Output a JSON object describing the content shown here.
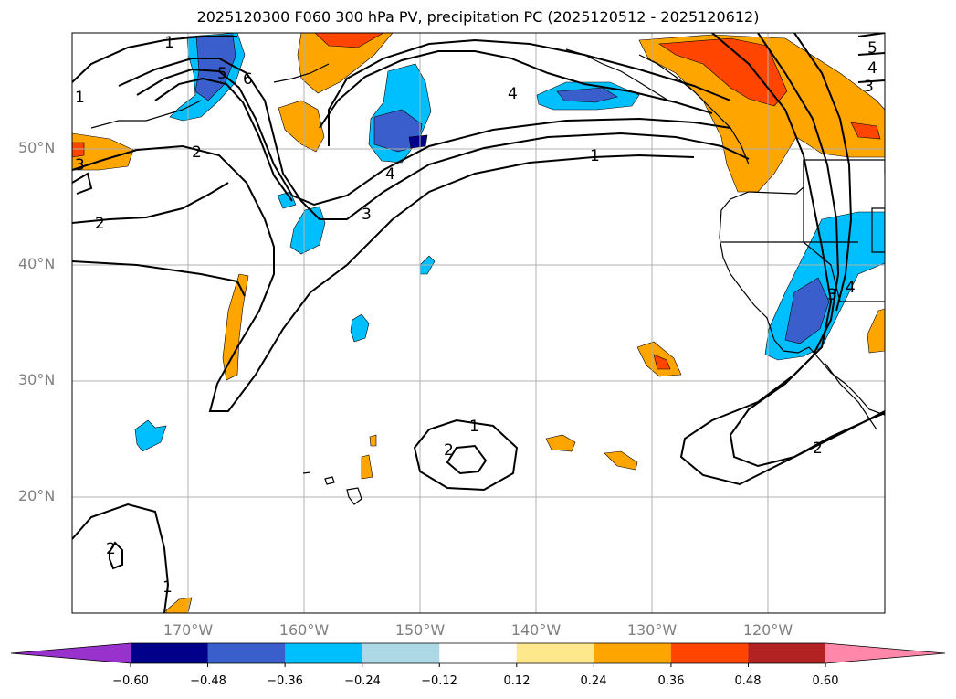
{
  "title": "2025120300 F060 300 hPa PV, precipitation PC (2025120512 - 2025120612)",
  "map": {
    "lat_labels": [
      "50°N",
      "40°N",
      "30°N",
      "20°N"
    ],
    "lon_labels": [
      "170°W",
      "160°W",
      "150°W",
      "140°W",
      "130°W",
      "120°W"
    ],
    "pv_contour_labels": [
      "1",
      "5",
      "6",
      "1",
      "2",
      "3",
      "4",
      "3",
      "2",
      "4",
      "1",
      "5",
      "4",
      "3",
      "1",
      "2",
      "3",
      "4",
      "2",
      "2",
      "1"
    ]
  },
  "colorbar": {
    "ticks": [
      "−0.60",
      "−0.48",
      "−0.36",
      "−0.24",
      "−0.12",
      "0.12",
      "0.24",
      "0.36",
      "0.48",
      "0.60"
    ],
    "colors": [
      "#9932cc",
      "#00008b",
      "#3a5fcd",
      "#00bfff",
      "#add8e6",
      "#ffffff",
      "#ffe88c",
      "#ffa500",
      "#ff4500",
      "#b22222",
      "#ff88aa"
    ]
  },
  "colors": {
    "orange": "#ffa500",
    "red_orange": "#ff4500",
    "deep_sky": "#00bfff",
    "royal_blue": "#3a5fcd",
    "navy": "#00008b"
  }
}
